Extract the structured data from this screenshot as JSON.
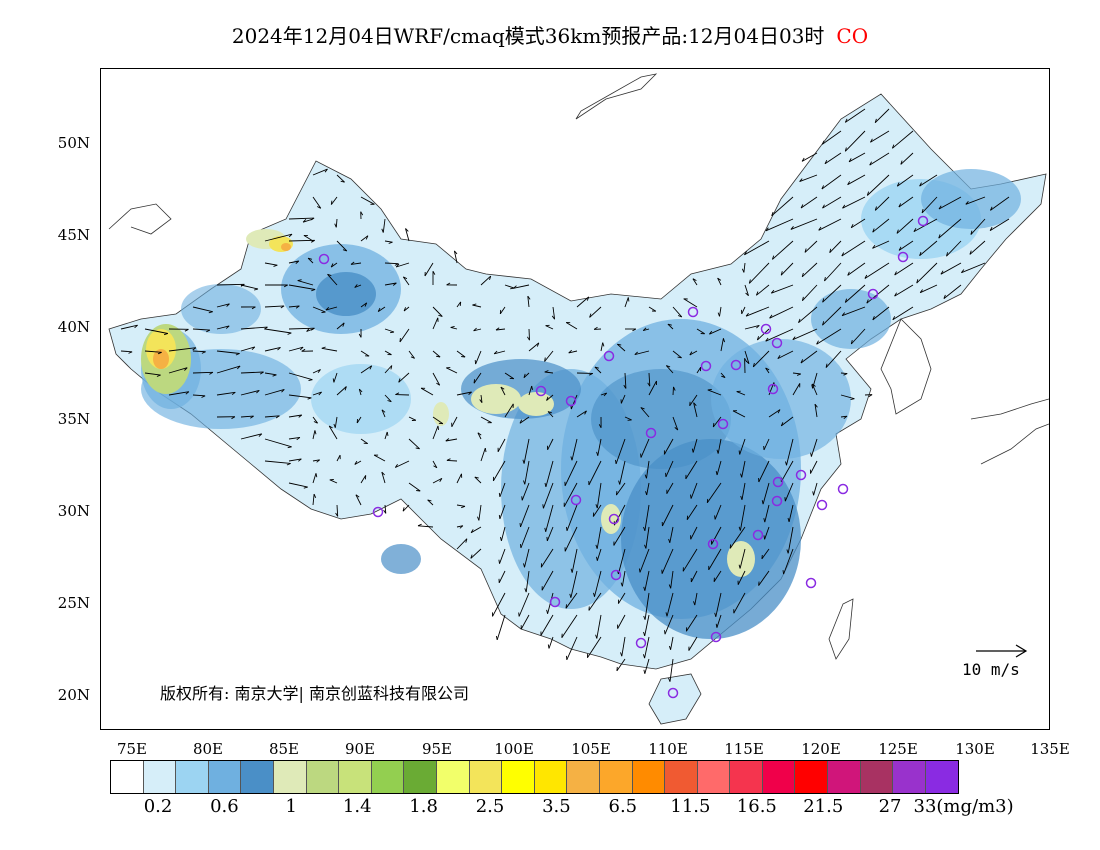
{
  "header": {
    "title": "2024年12月04日WRF/cmaq模式36km预报产品:12月04日03时",
    "pollutant": "CO",
    "pollutant_color": "#ff0000"
  },
  "axes": {
    "lat_labels": [
      "50N",
      "45N",
      "40N",
      "35N",
      "30N",
      "25N",
      "20N"
    ],
    "lon_labels": [
      "75E",
      "80E",
      "85E",
      "90E",
      "95E",
      "100E",
      "105E",
      "110E",
      "115E",
      "120E",
      "125E",
      "130E",
      "135E"
    ]
  },
  "map": {
    "copyright": "版权所有: 南京大学| 南京创蓝科技有限公司",
    "wind_reference": "10 m/s",
    "station_marker_color": "#8a2be2",
    "land_base_color": "#d6eef9",
    "coastline_color": "#000000"
  },
  "legend": {
    "colors": [
      "#ffffff",
      "#d6eef9",
      "#9cd4f2",
      "#6fb0e0",
      "#4a8fc7",
      "#dfeab8",
      "#bcd880",
      "#c8e27a",
      "#93cf50",
      "#6aab34",
      "#f2ff6a",
      "#f3e45a",
      "#ffff00",
      "#ffe600",
      "#f5b144",
      "#fca72a",
      "#ff8b00",
      "#f05a32",
      "#ff6a6a",
      "#f5344e",
      "#f0004a",
      "#ff0000",
      "#d0157a",
      "#a83262",
      "#9932cc",
      "#8a2be2"
    ],
    "labels": [
      "0.2",
      "0.6",
      "1",
      "1.4",
      "1.8",
      "2.5",
      "3.5",
      "6.5",
      "11.5",
      "16.5",
      "21.5",
      "27",
      "33(mg/m3)"
    ],
    "unit": "mg/m3"
  }
}
